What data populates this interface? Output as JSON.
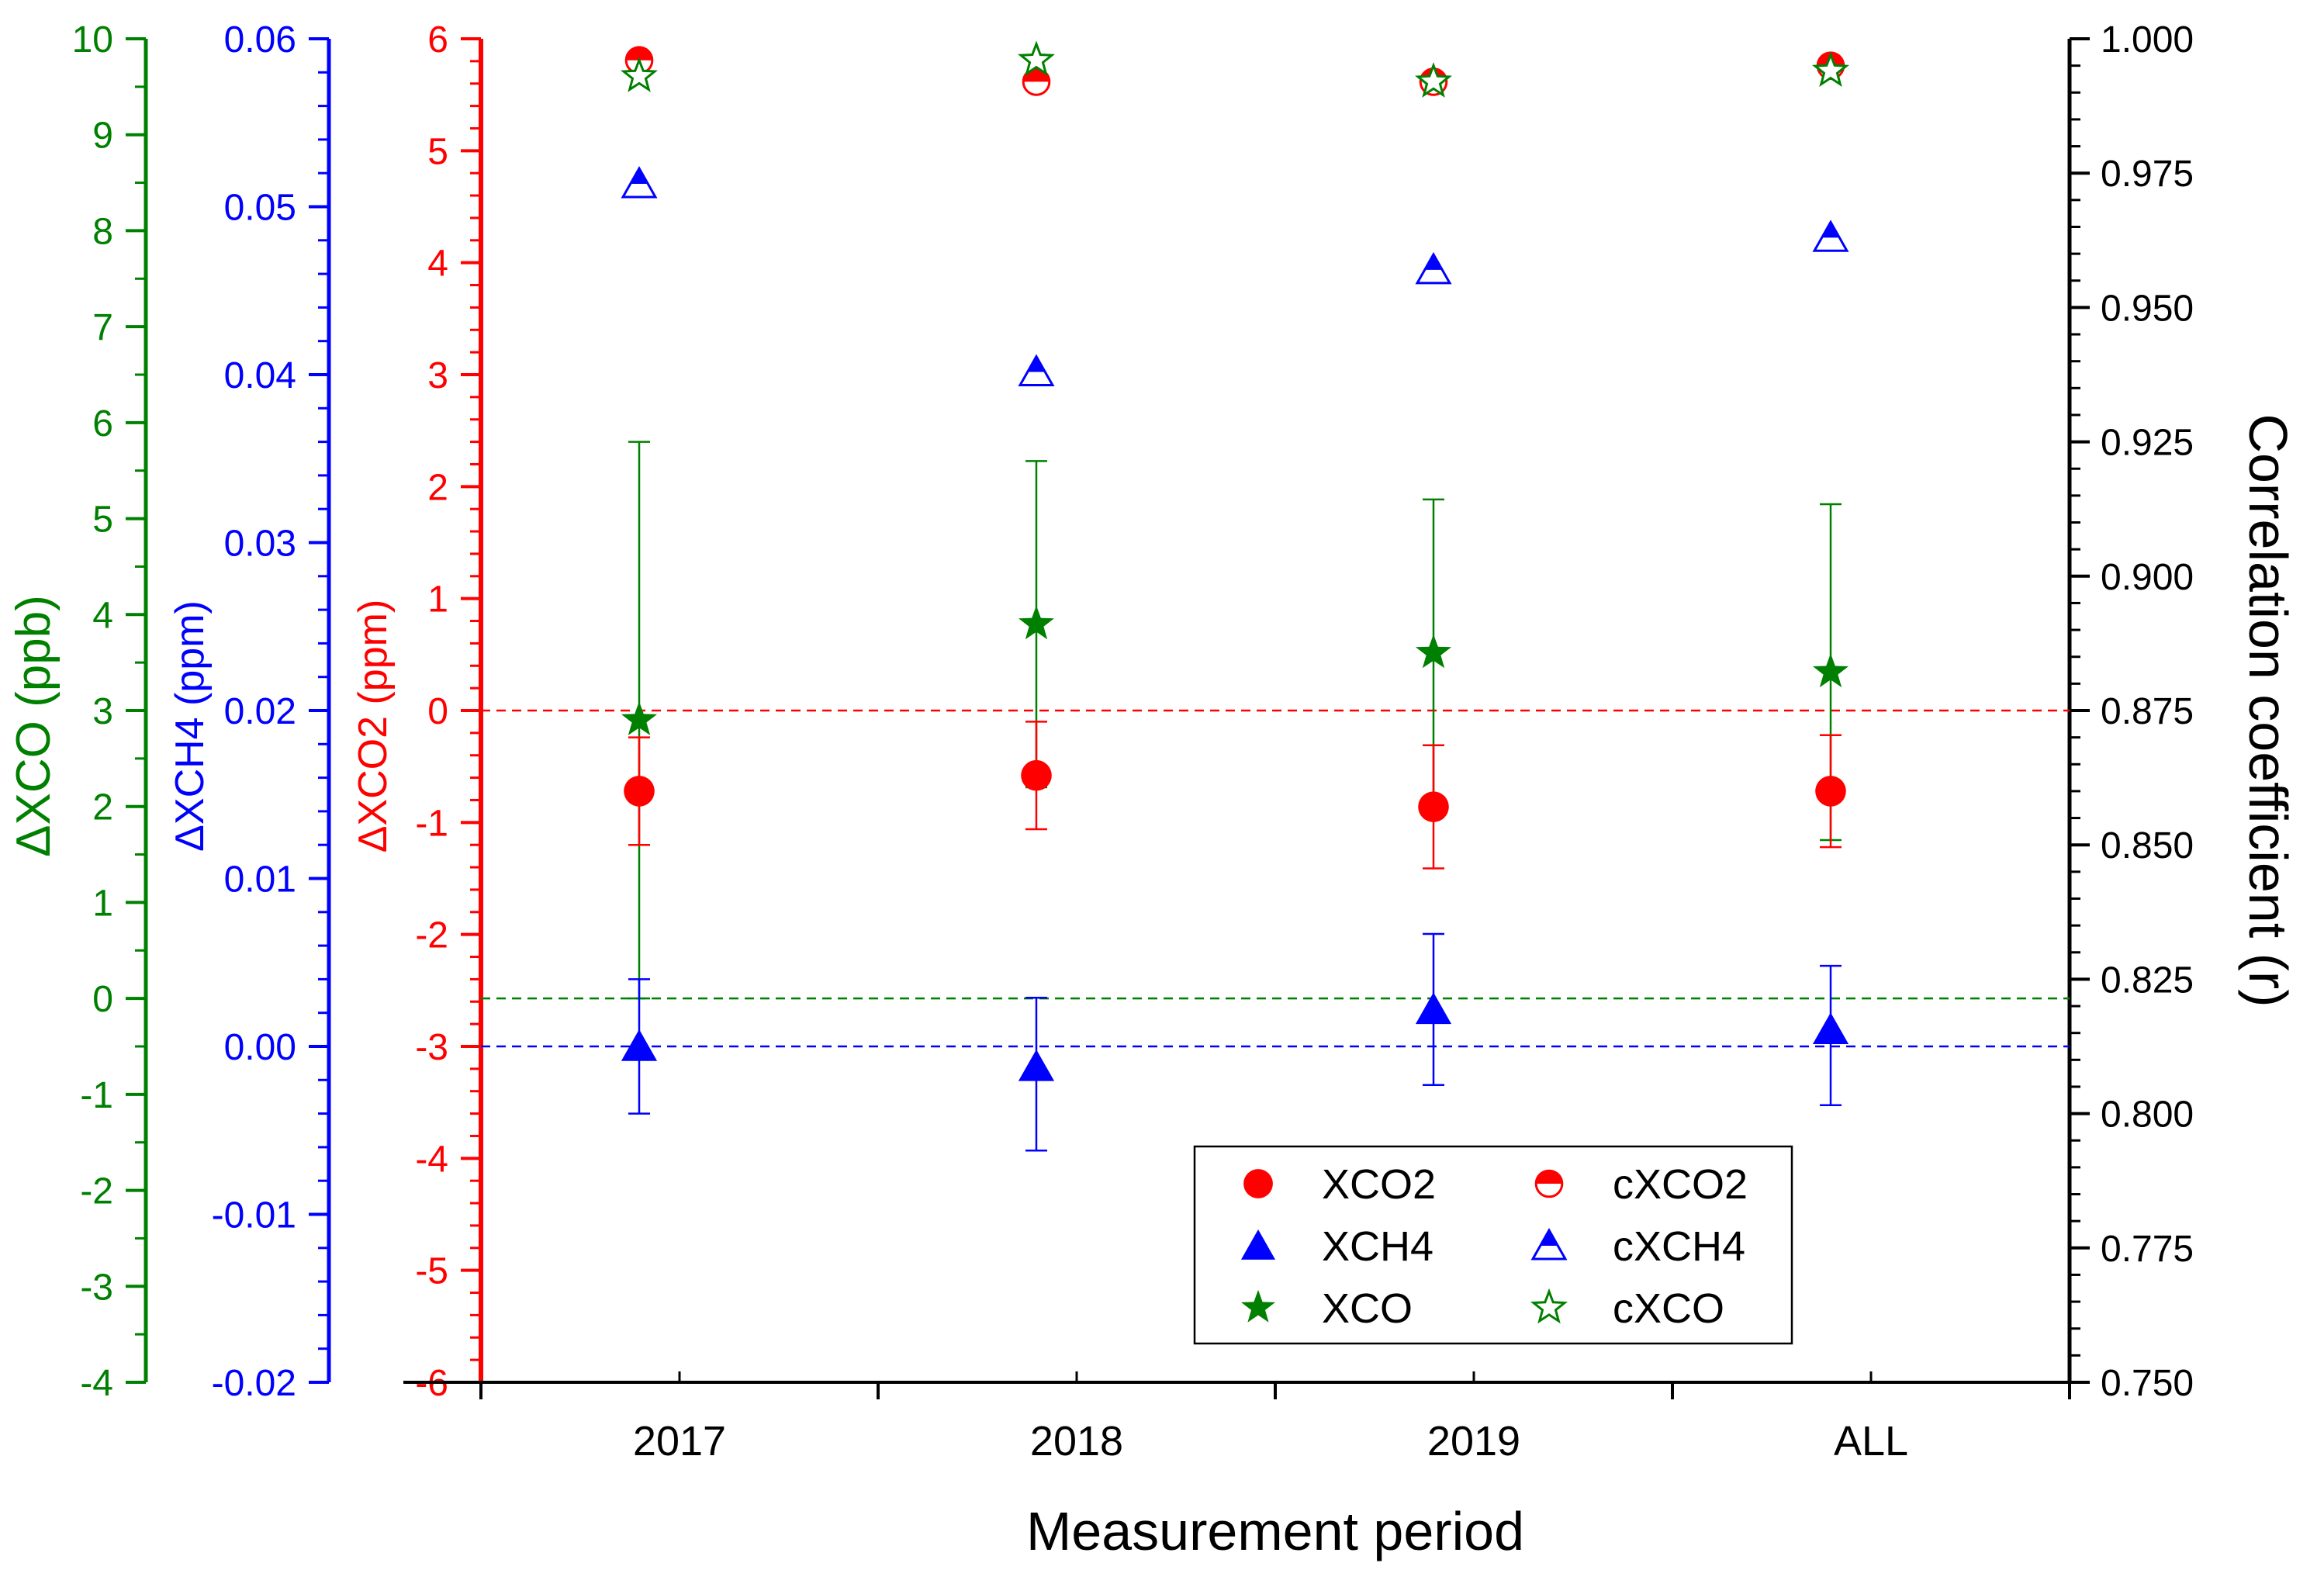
{
  "chart_data": {
    "type": "scatter",
    "xlabel": "Measurement period",
    "categories": [
      "2017",
      "2018",
      "2019",
      "ALL"
    ],
    "colors": {
      "co2": "#ff0000",
      "ch4": "#0000ff",
      "co": "#008000",
      "r": "#000000"
    },
    "axes": {
      "xco": {
        "label": "ΔXCO (ppb)",
        "ylim": [
          -4,
          10
        ],
        "ticks": [
          "-4",
          "-3",
          "-2",
          "-1",
          "0",
          "1",
          "2",
          "3",
          "4",
          "5",
          "6",
          "7",
          "8",
          "9",
          "10"
        ]
      },
      "xch4": {
        "label": "ΔXCH4 (ppm)",
        "ylim": [
          -0.02,
          0.06
        ],
        "ticks": [
          "-0.02",
          "-0.01",
          "0.00",
          "0.01",
          "0.02",
          "0.03",
          "0.04",
          "0.05",
          "0.06"
        ]
      },
      "xco2": {
        "label": "ΔXCO2 (ppm)",
        "ylim": [
          -6,
          6
        ],
        "ticks": [
          "-6",
          "-5",
          "-4",
          "-3",
          "-2",
          "-1",
          "0",
          "1",
          "2",
          "3",
          "4",
          "5",
          "6"
        ]
      },
      "r": {
        "label": "Correlation coefficient (r)",
        "ylim": [
          0.75,
          1.0
        ],
        "ticks": [
          "0.750",
          "0.775",
          "0.800",
          "0.825",
          "0.850",
          "0.875",
          "0.900",
          "0.925",
          "0.950",
          "0.975",
          "1.000"
        ]
      }
    },
    "series": [
      {
        "name": "XCO2",
        "axis": "xco2",
        "values": [
          -0.72,
          -0.58,
          -0.86,
          -0.72
        ],
        "err_low": [
          0.48,
          0.48,
          0.55,
          0.5
        ],
        "err_high": [
          0.48,
          0.48,
          0.55,
          0.5
        ]
      },
      {
        "name": "XCH4",
        "axis": "xch4",
        "values": [
          0.0,
          -0.0012,
          0.0022,
          0.001
        ],
        "err_low": [
          0.004,
          0.005,
          0.0045,
          0.0045
        ],
        "err_high": [
          0.004,
          0.0041,
          0.0045,
          0.0038
        ]
      },
      {
        "name": "XCO",
        "axis": "xco",
        "values": [
          2.9,
          3.9,
          3.6,
          3.4
        ],
        "err_low": [
          2.9,
          1.7,
          1.6,
          1.75
        ],
        "err_high": [
          2.9,
          1.7,
          1.6,
          1.75
        ]
      },
      {
        "name": "cXCO2",
        "axis": "r",
        "values": [
          0.996,
          0.992,
          0.992,
          0.995
        ]
      },
      {
        "name": "cXCH4",
        "axis": "r",
        "values": [
          0.973,
          0.938,
          0.957,
          0.963
        ]
      },
      {
        "name": "cXCO",
        "axis": "r",
        "values": [
          0.993,
          0.996,
          0.992,
          0.994
        ]
      }
    ],
    "reference_lines": [
      {
        "axis": "xco2",
        "value": 0,
        "series": "XCO2"
      },
      {
        "axis": "xco",
        "value": 0,
        "series": "XCO"
      },
      {
        "axis": "xch4",
        "value": 0,
        "series": "XCH4"
      }
    ],
    "legend": {
      "position": "lower-right",
      "items": [
        {
          "label": "XCO2",
          "marker": "circle-filled",
          "color": "#ff0000"
        },
        {
          "label": "cXCO2",
          "marker": "circle-half",
          "color": "#ff0000"
        },
        {
          "label": "XCH4",
          "marker": "triangle-filled",
          "color": "#0000ff"
        },
        {
          "label": "cXCH4",
          "marker": "triangle-half",
          "color": "#0000ff"
        },
        {
          "label": "XCO",
          "marker": "star-filled",
          "color": "#008000"
        },
        {
          "label": "cXCO",
          "marker": "star-open",
          "color": "#008000"
        }
      ]
    }
  }
}
